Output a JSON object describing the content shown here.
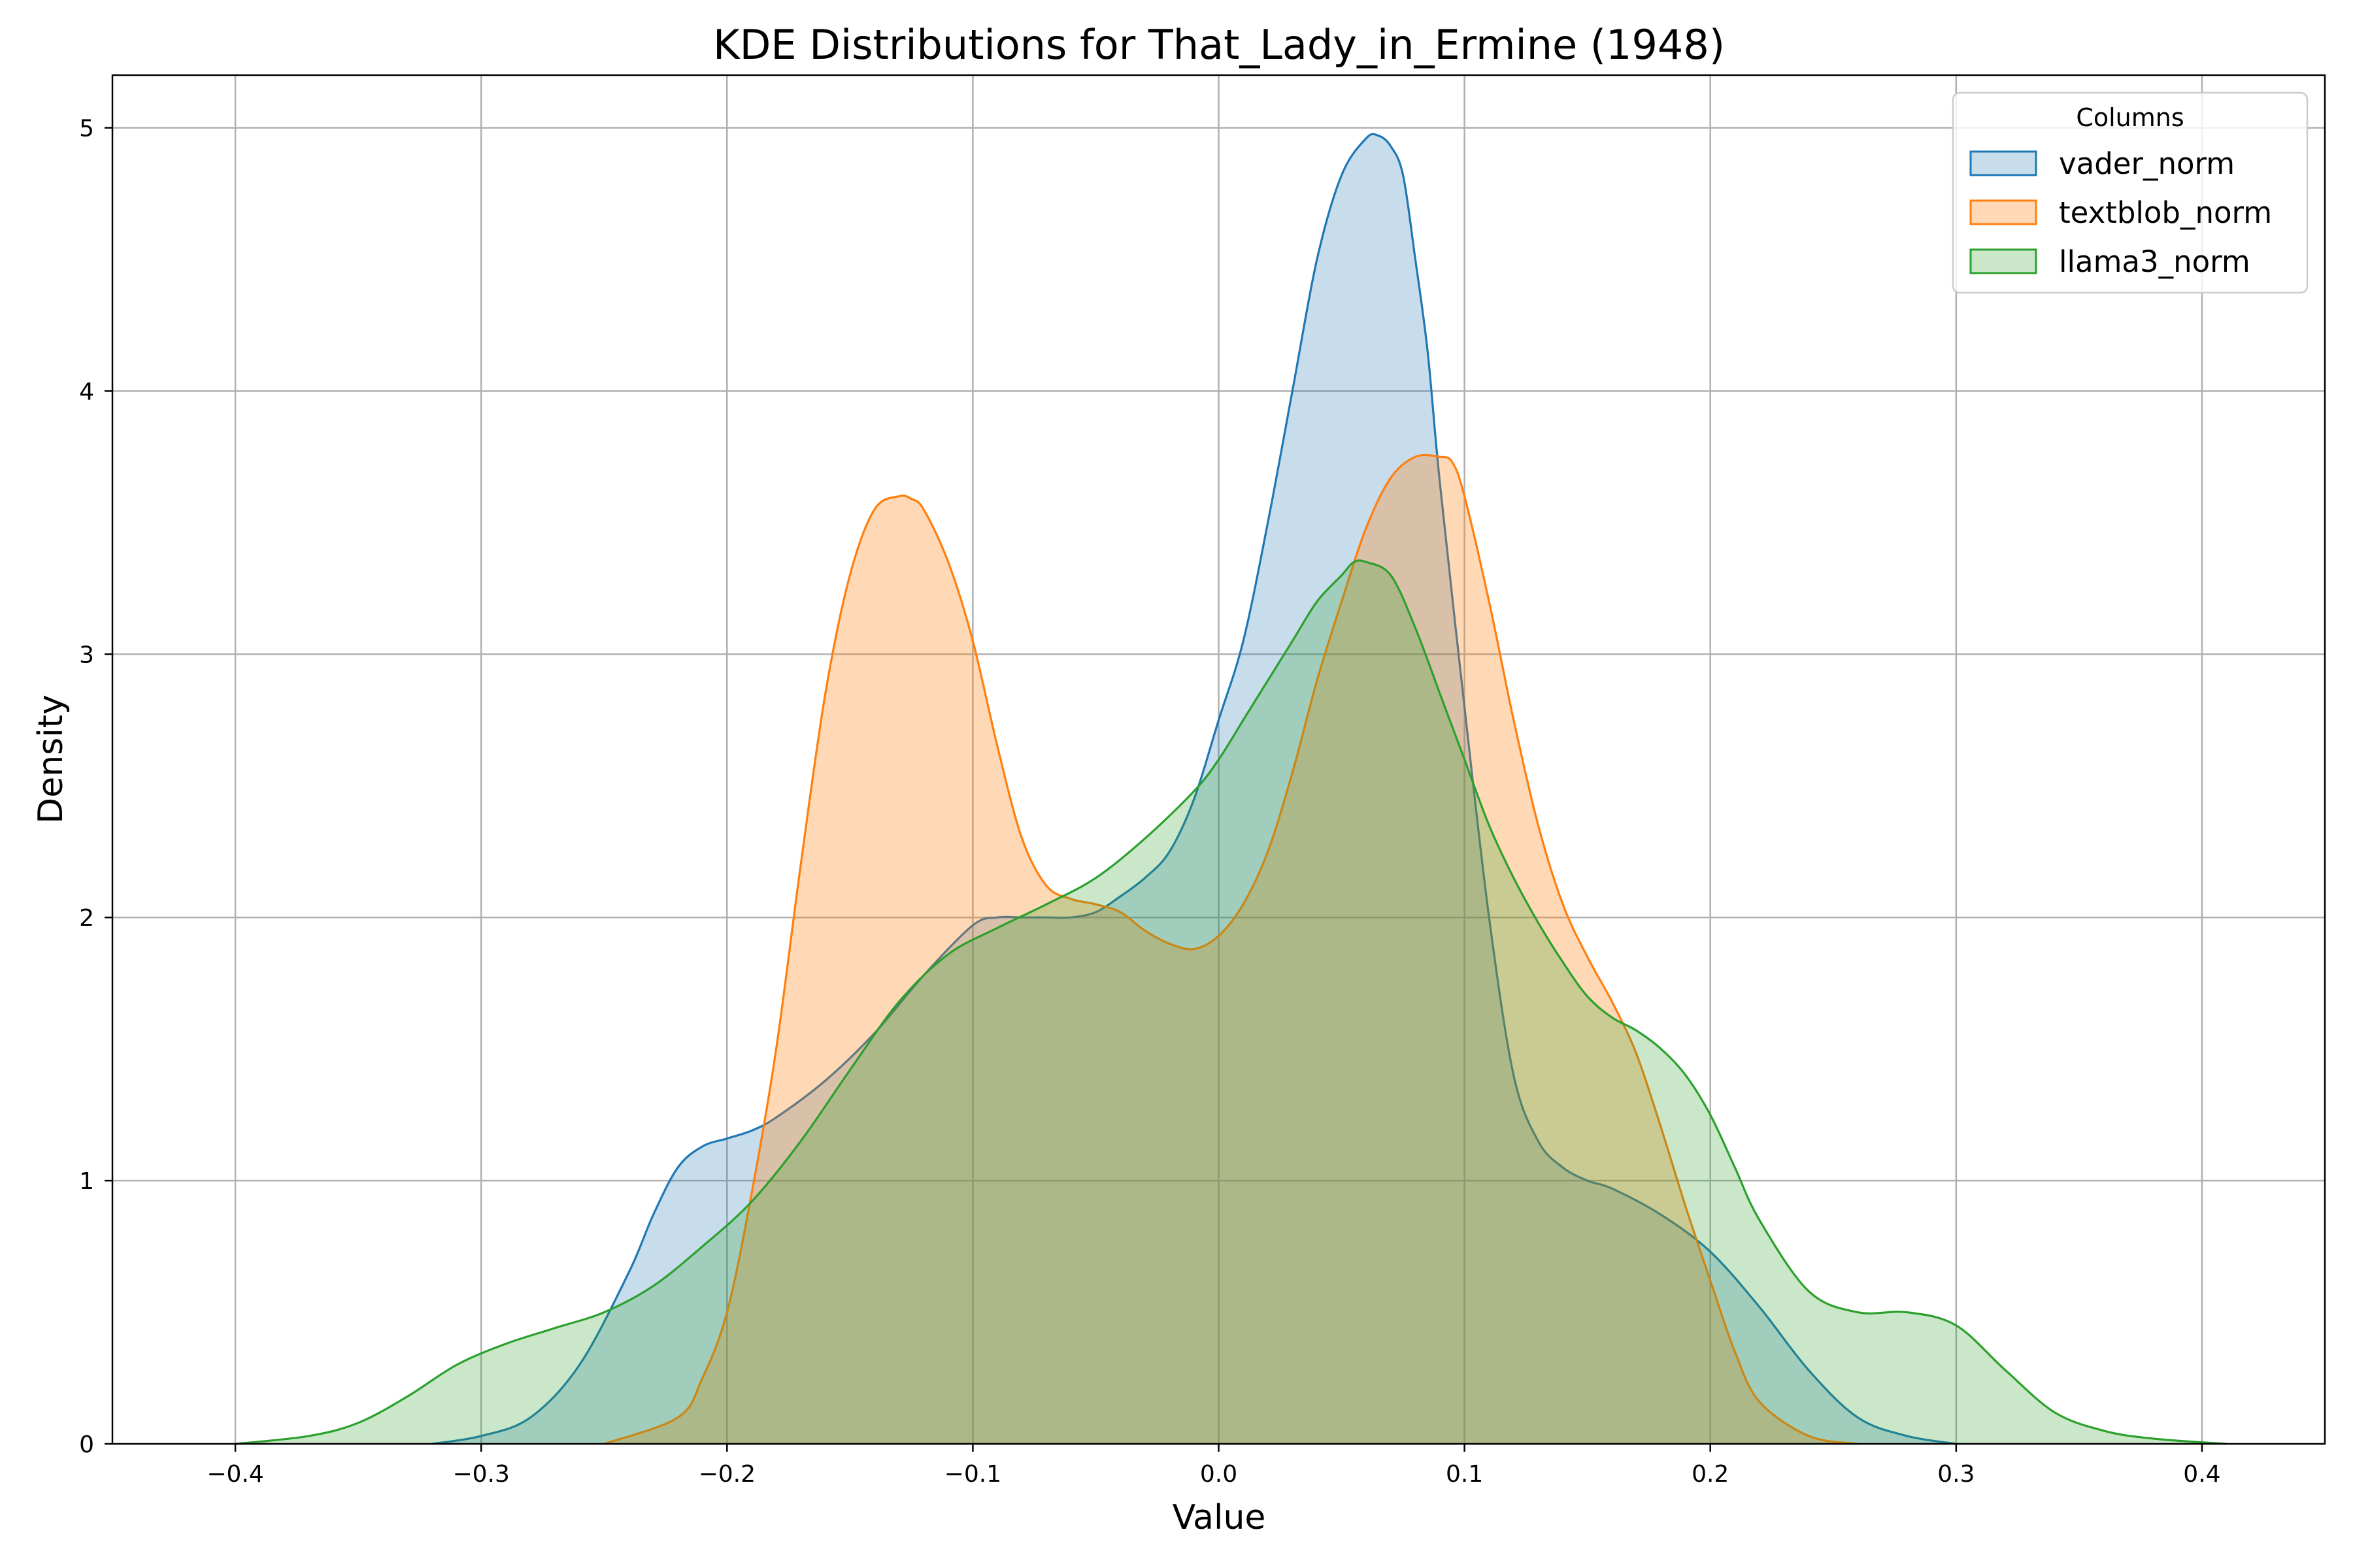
{
  "chart_data": {
    "type": "area",
    "title": "KDE Distributions for That_Lady_in_Ermine (1948)",
    "xlabel": "Value",
    "ylabel": "Density",
    "xlim": [
      -0.45,
      0.45
    ],
    "ylim": [
      0,
      5.2
    ],
    "x_ticks": [
      -0.4,
      -0.3,
      -0.2,
      -0.1,
      0.0,
      0.1,
      0.2,
      0.3,
      0.4
    ],
    "x_tick_labels": [
      "−0.4",
      "−0.3",
      "−0.2",
      "−0.1",
      "0.0",
      "0.1",
      "0.2",
      "0.3",
      "0.4"
    ],
    "y_ticks": [
      0,
      1,
      2,
      3,
      4,
      5
    ],
    "y_tick_labels": [
      "0",
      "1",
      "2",
      "3",
      "4",
      "5"
    ],
    "grid": true,
    "legend": {
      "title": "Columns",
      "placement": "top-right"
    },
    "series": [
      {
        "name": "vader_norm",
        "color": "#1f77b4",
        "fill_opacity": 0.25,
        "x": [
          -0.32,
          -0.3,
          -0.28,
          -0.26,
          -0.24,
          -0.23,
          -0.22,
          -0.21,
          -0.2,
          -0.19,
          -0.18,
          -0.16,
          -0.14,
          -0.12,
          -0.1,
          -0.09,
          -0.08,
          -0.07,
          -0.06,
          -0.05,
          -0.04,
          -0.03,
          -0.02,
          -0.01,
          0.0,
          0.01,
          0.02,
          0.03,
          0.04,
          0.05,
          0.06,
          0.065,
          0.07,
          0.075,
          0.08,
          0.085,
          0.09,
          0.1,
          0.11,
          0.12,
          0.13,
          0.14,
          0.15,
          0.16,
          0.18,
          0.2,
          0.22,
          0.24,
          0.26,
          0.28,
          0.3
        ],
        "y": [
          0.0,
          0.03,
          0.1,
          0.3,
          0.65,
          0.87,
          1.05,
          1.13,
          1.16,
          1.19,
          1.24,
          1.38,
          1.56,
          1.78,
          1.97,
          2.0,
          2.0,
          2.0,
          2.0,
          2.02,
          2.08,
          2.15,
          2.25,
          2.45,
          2.75,
          3.05,
          3.5,
          4.0,
          4.5,
          4.82,
          4.96,
          4.97,
          4.93,
          4.82,
          4.5,
          4.15,
          3.65,
          2.8,
          2.0,
          1.4,
          1.15,
          1.05,
          1.0,
          0.97,
          0.87,
          0.73,
          0.52,
          0.28,
          0.1,
          0.03,
          0.0
        ]
      },
      {
        "name": "textblob_norm",
        "color": "#ff7f0e",
        "fill_opacity": 0.3,
        "x": [
          -0.25,
          -0.22,
          -0.21,
          -0.2,
          -0.19,
          -0.18,
          -0.17,
          -0.16,
          -0.15,
          -0.14,
          -0.13,
          -0.125,
          -0.12,
          -0.11,
          -0.1,
          -0.09,
          -0.08,
          -0.07,
          -0.06,
          -0.05,
          -0.04,
          -0.03,
          -0.02,
          -0.01,
          0.0,
          0.01,
          0.02,
          0.03,
          0.04,
          0.05,
          0.06,
          0.07,
          0.08,
          0.09,
          0.095,
          0.1,
          0.11,
          0.12,
          0.13,
          0.14,
          0.15,
          0.16,
          0.17,
          0.18,
          0.19,
          0.2,
          0.21,
          0.22,
          0.24,
          0.26
        ],
        "y": [
          0.0,
          0.1,
          0.25,
          0.5,
          0.95,
          1.5,
          2.2,
          2.85,
          3.3,
          3.55,
          3.6,
          3.59,
          3.55,
          3.35,
          3.05,
          2.65,
          2.3,
          2.12,
          2.07,
          2.05,
          2.02,
          1.95,
          1.9,
          1.88,
          1.93,
          2.05,
          2.25,
          2.55,
          2.9,
          3.2,
          3.48,
          3.67,
          3.75,
          3.75,
          3.73,
          3.6,
          3.2,
          2.75,
          2.35,
          2.05,
          1.85,
          1.68,
          1.48,
          1.2,
          0.9,
          0.62,
          0.35,
          0.16,
          0.03,
          0.0
        ]
      },
      {
        "name": "llama3_norm",
        "color": "#2ca02c",
        "fill_opacity": 0.25,
        "x": [
          -0.4,
          -0.37,
          -0.35,
          -0.33,
          -0.31,
          -0.29,
          -0.27,
          -0.25,
          -0.23,
          -0.21,
          -0.19,
          -0.17,
          -0.15,
          -0.13,
          -0.11,
          -0.09,
          -0.07,
          -0.05,
          -0.03,
          -0.01,
          0.0,
          0.01,
          0.02,
          0.03,
          0.04,
          0.05,
          0.055,
          0.06,
          0.07,
          0.08,
          0.09,
          0.1,
          0.11,
          0.12,
          0.13,
          0.14,
          0.15,
          0.16,
          0.17,
          0.18,
          0.19,
          0.2,
          0.21,
          0.22,
          0.24,
          0.26,
          0.28,
          0.3,
          0.32,
          0.34,
          0.36,
          0.38,
          0.41
        ],
        "y": [
          0.0,
          0.03,
          0.08,
          0.18,
          0.3,
          0.38,
          0.44,
          0.5,
          0.6,
          0.75,
          0.92,
          1.15,
          1.42,
          1.68,
          1.86,
          1.96,
          2.05,
          2.15,
          2.3,
          2.48,
          2.6,
          2.75,
          2.9,
          3.05,
          3.2,
          3.3,
          3.35,
          3.35,
          3.3,
          3.1,
          2.85,
          2.6,
          2.35,
          2.15,
          1.98,
          1.83,
          1.7,
          1.62,
          1.57,
          1.5,
          1.4,
          1.25,
          1.05,
          0.85,
          0.58,
          0.5,
          0.5,
          0.45,
          0.28,
          0.12,
          0.05,
          0.02,
          0.0
        ]
      }
    ]
  }
}
